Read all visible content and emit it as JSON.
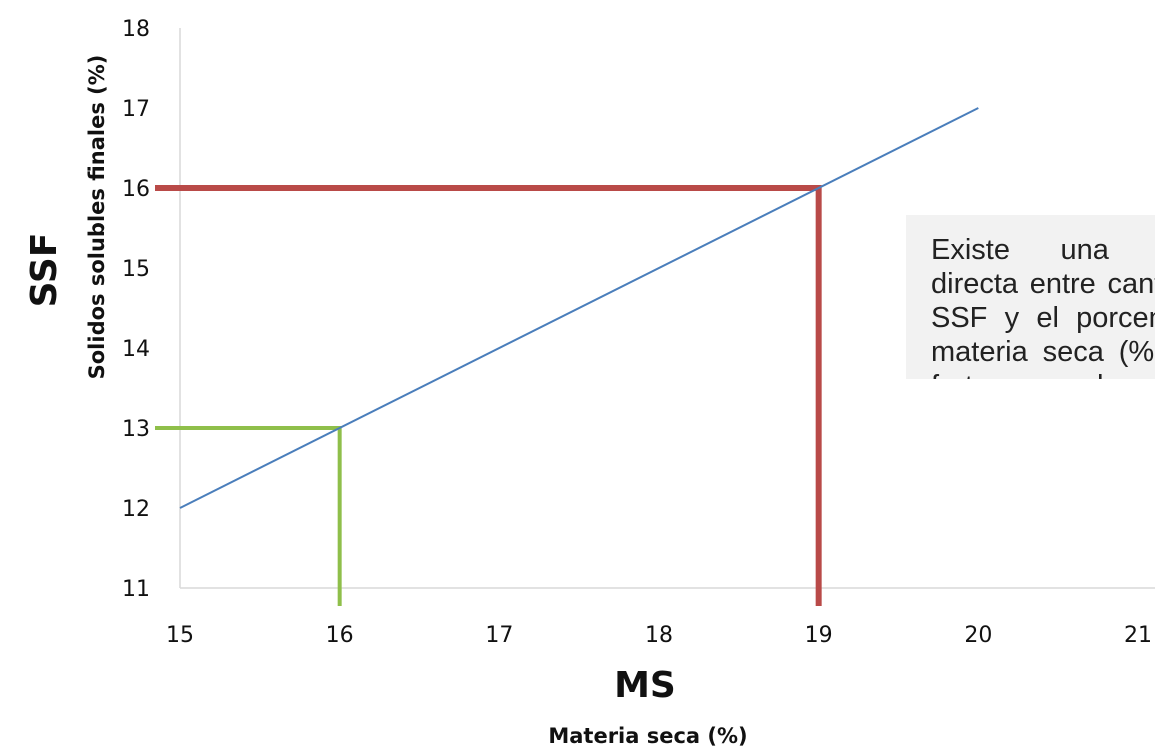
{
  "chart_data": {
    "type": "line",
    "title": "",
    "xlabel": "MS",
    "xlabel_sub": "Materia seca (%)",
    "ylabel": "SSF",
    "ylabel_sub": "Solidos solubles finales (%)",
    "xlim": [
      15,
      21
    ],
    "ylim": [
      11,
      18
    ],
    "x_ticks": [
      "15",
      "16",
      "17",
      "18",
      "19",
      "20",
      "21"
    ],
    "y_ticks": [
      "11",
      "12",
      "13",
      "14",
      "15",
      "16",
      "17",
      "18"
    ],
    "grid": false,
    "series": [
      {
        "x": [
          15,
          20
        ],
        "y": [
          12,
          17
        ],
        "color": "#4a7ebb"
      }
    ],
    "reference_lines": [
      {
        "x": 16,
        "y": 13,
        "color": "#8fbf4a"
      },
      {
        "x": 19,
        "y": 16,
        "color": "#b94a48"
      }
    ],
    "annotation": "Existe una relación directa entre cantidad de SSF y el porcentaje de materia seca (%MS) del fruto a cosecha."
  }
}
